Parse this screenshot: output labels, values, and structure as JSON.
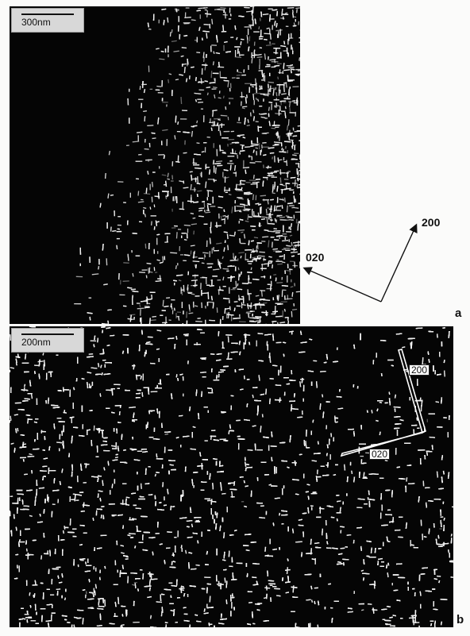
{
  "panel_a": {
    "scale_label": "300nm",
    "letter": "a",
    "direction_labels": {
      "first": "200",
      "second": "020"
    }
  },
  "panel_b": {
    "scale_label": "200nm",
    "letter": "b",
    "direction_labels": {
      "first": "200",
      "second": "020"
    }
  },
  "colors": {
    "background": "#050505",
    "texture": "#f2f2f2"
  }
}
